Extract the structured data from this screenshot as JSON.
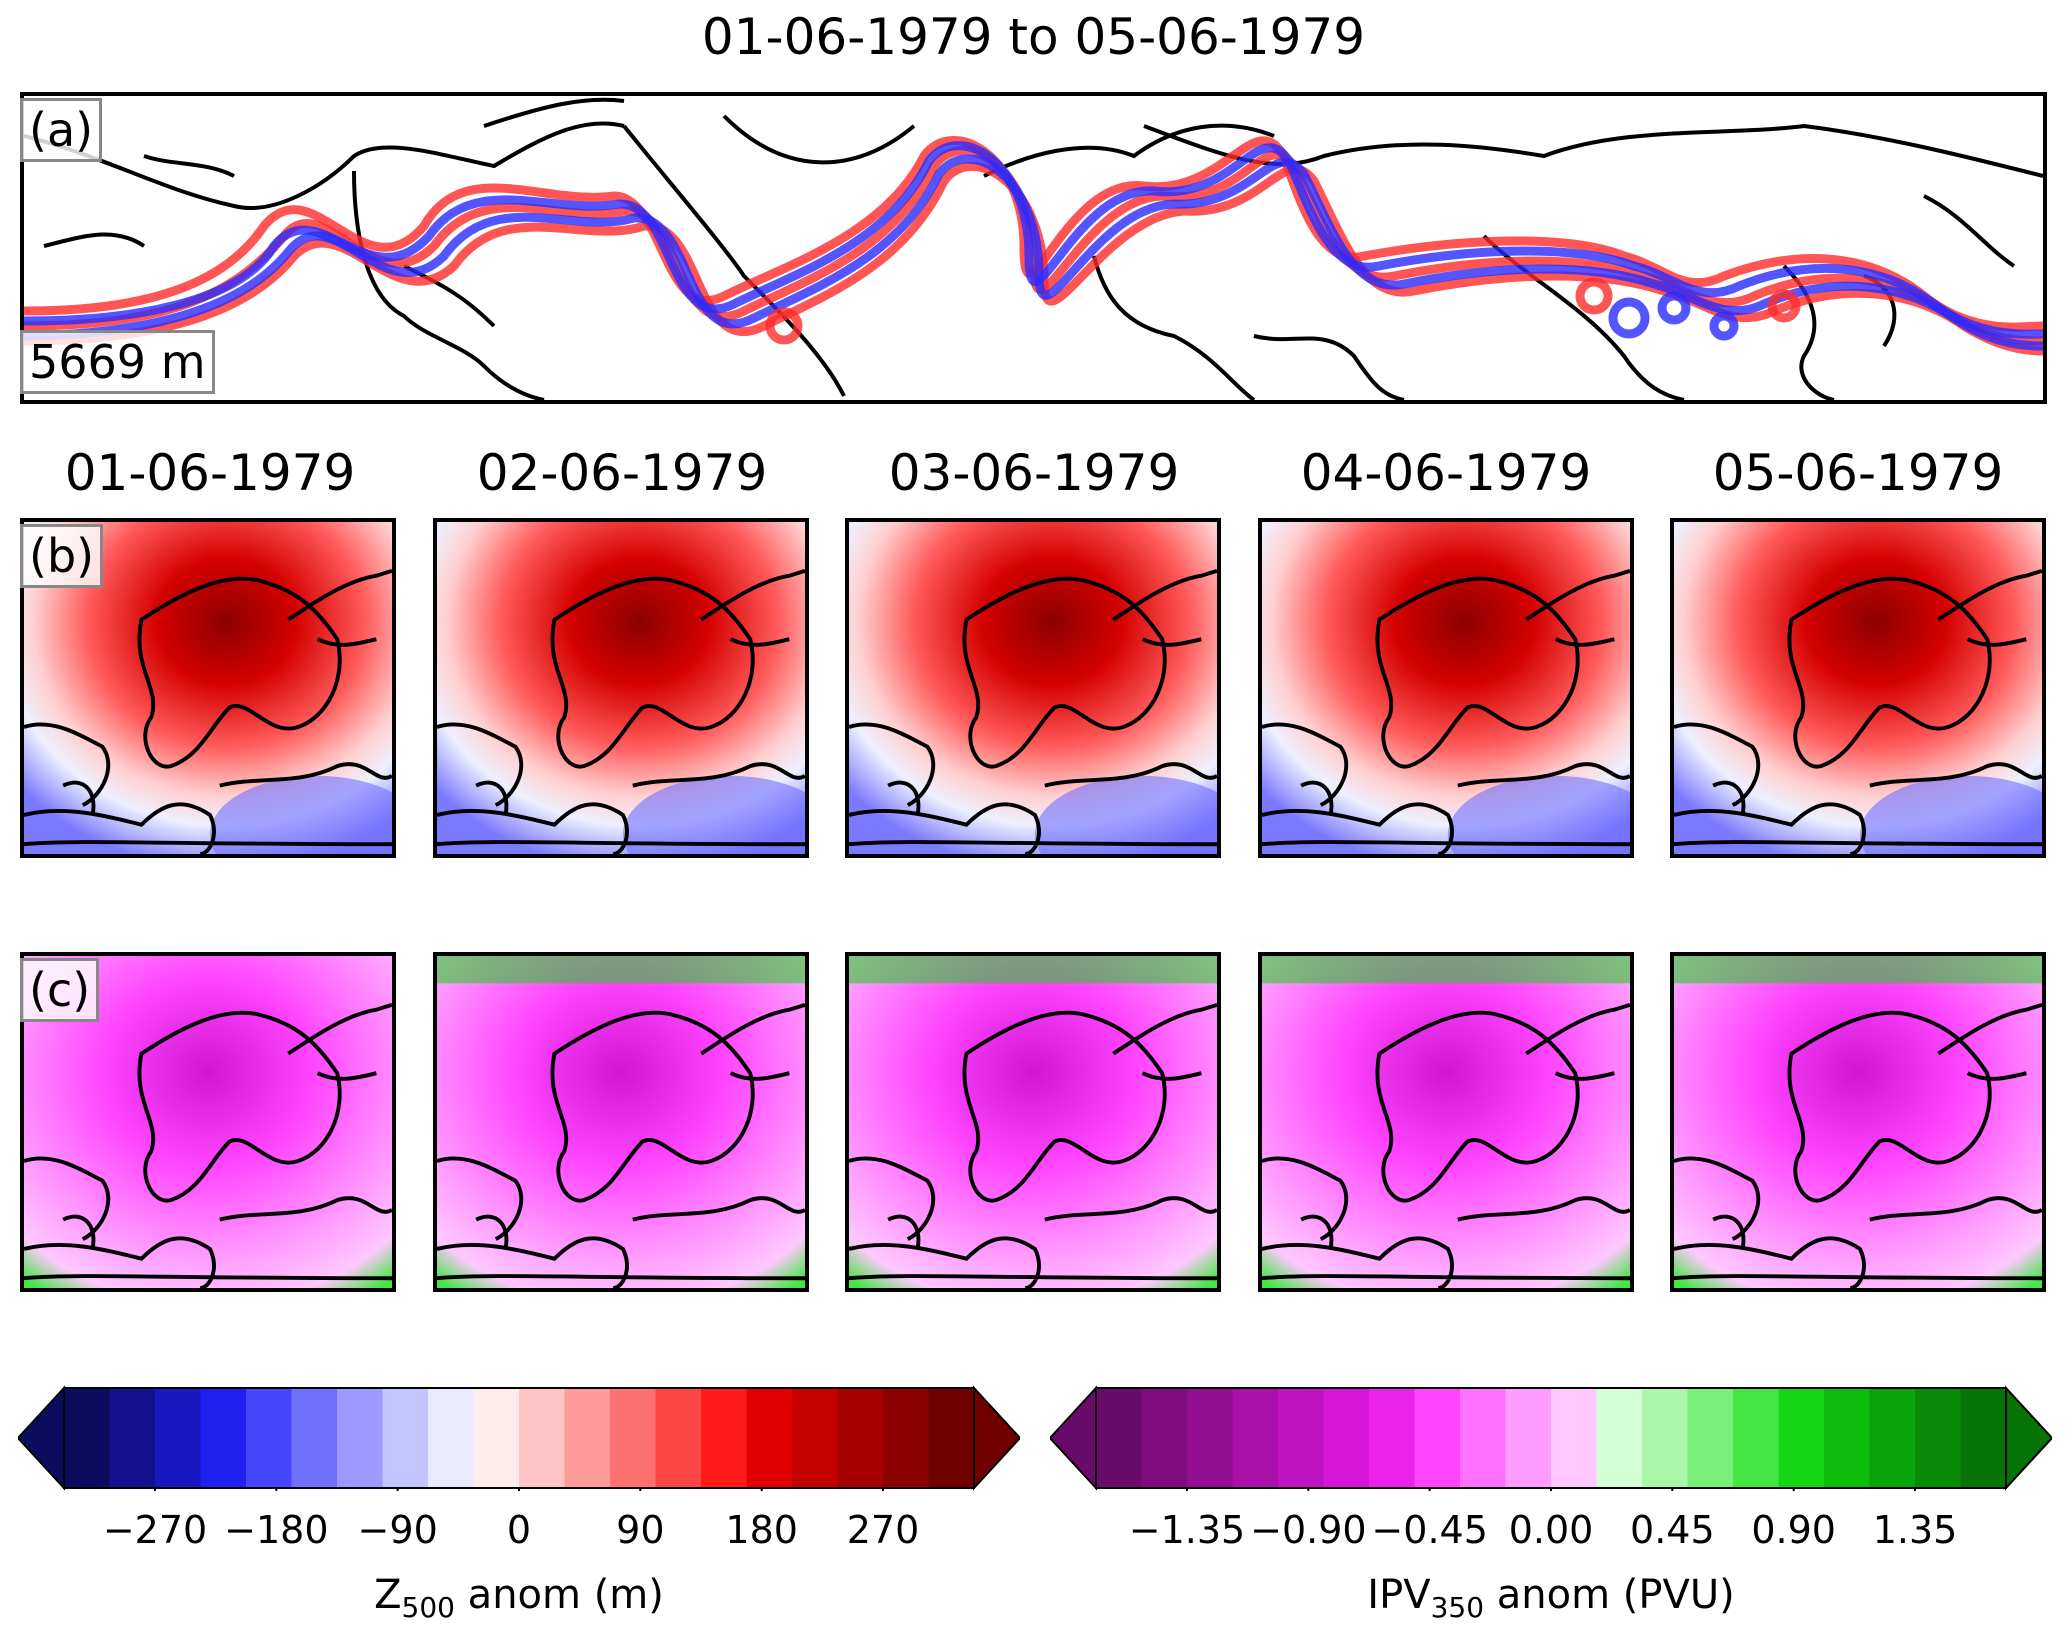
{
  "figure": {
    "title": "01-06-1979 to 05-06-1979"
  },
  "panel_a": {
    "label": "(a)",
    "contour_value": "5669 m",
    "colors": {
      "blue_series": "#2a2aff",
      "red_series": "#ff2a2a"
    }
  },
  "panel_b": {
    "label": "(b)",
    "dates": [
      "01-06-1979",
      "02-06-1979",
      "03-06-1979",
      "04-06-1979",
      "05-06-1979"
    ]
  },
  "panel_c": {
    "label": "(c)"
  },
  "colorbar_z500": {
    "label_main": "Z",
    "label_sub": "500",
    "label_rest": " anom (m)",
    "ticks": [
      "−270",
      "−180",
      "−90",
      "0",
      "90",
      "180",
      "270"
    ],
    "colors": [
      "#0c0c5e",
      "#12128f",
      "#1818c0",
      "#2020f0",
      "#4646ff",
      "#7070ff",
      "#9a9aff",
      "#c4c4ff",
      "#eaeaff",
      "#ffecec",
      "#ffc4c4",
      "#ff9a9a",
      "#ff7070",
      "#ff4646",
      "#ff1a1a",
      "#e00000",
      "#c40000",
      "#a80000",
      "#8c0000",
      "#700000"
    ]
  },
  "colorbar_ipv": {
    "label_main": "IPV",
    "label_sub": "350",
    "label_rest": " anom (PVU)",
    "ticks": [
      "−1.35",
      "−0.90",
      "−0.45",
      "0.00",
      "0.45",
      "0.90",
      "1.35"
    ],
    "colors": [
      "#6a0a6a",
      "#7e0c7e",
      "#940e94",
      "#aa10aa",
      "#c012c0",
      "#d616d6",
      "#ea22ea",
      "#ff44ff",
      "#ff70ff",
      "#ff9cff",
      "#ffc8ff",
      "#d4ffd4",
      "#aaf7aa",
      "#7aef7a",
      "#44e644",
      "#14d614",
      "#0cbd0c",
      "#0aa40a",
      "#088c08",
      "#067406"
    ]
  }
}
